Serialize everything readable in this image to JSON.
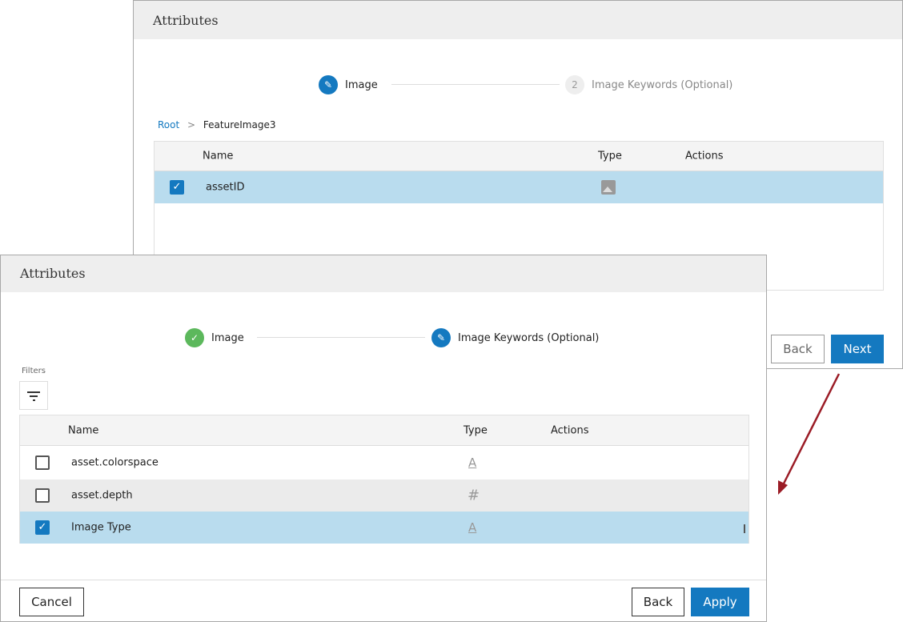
{
  "dialog1": {
    "title": "Attributes",
    "steps": [
      {
        "label": "Image",
        "state": "active"
      },
      {
        "number": "2",
        "label": "Image Keywords (Optional)",
        "state": "pending"
      }
    ],
    "breadcrumb": {
      "root": "Root",
      "separator": ">",
      "current": "FeatureImage3"
    },
    "columns": [
      "Name",
      "Type",
      "Actions"
    ],
    "rows": [
      {
        "name": "assetID",
        "type_icon": "image-icon",
        "checked": true
      }
    ],
    "back_label": "Back",
    "next_label": "Next"
  },
  "dialog2": {
    "title": "Attributes",
    "steps": [
      {
        "label": "Image",
        "state": "complete"
      },
      {
        "label": "Image Keywords (Optional)",
        "state": "active"
      }
    ],
    "filters_label": "Filters",
    "columns": [
      "Name",
      "Type",
      "Actions"
    ],
    "rows": [
      {
        "name": "asset.colorspace",
        "type_icon": "text-type-icon",
        "checked": false
      },
      {
        "name": "asset.depth",
        "type_icon": "number-hash-icon",
        "checked": false
      },
      {
        "name": "Image Type",
        "type_icon": "text-type-icon",
        "checked": true
      }
    ],
    "cancel_label": "Cancel",
    "back_label": "Back",
    "apply_label": "Apply"
  },
  "colors": {
    "primary": "#1479c0",
    "success": "#5cb85c",
    "selected_row": "#b9dcee",
    "arrow": "#9b1c26"
  }
}
